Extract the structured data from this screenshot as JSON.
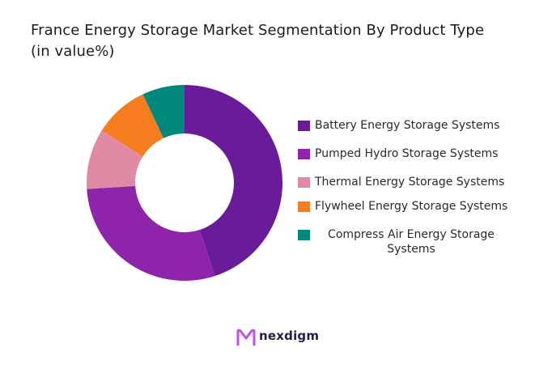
{
  "chart_data": {
    "type": "pie",
    "style": "donut",
    "title_line1": "France Energy Storage Market Segmentation By Product Type",
    "title_line2": "(in value%)",
    "categories": [
      "Battery Energy Storage Systems",
      "Pumped Hydro Storage Systems",
      "Thermal Energy Storage Systems",
      "Flywheel Energy Storage Systems",
      "Compress Air Energy Storage Systems"
    ],
    "values": [
      45,
      29,
      10,
      9,
      7
    ],
    "colors": [
      "#6a1b9a",
      "#8e24aa",
      "#e08ba3",
      "#f57c1f",
      "#00897b"
    ],
    "legend_position": "right"
  },
  "brand": {
    "name": "nexdigm",
    "color": "#2c1a4d",
    "accent": "#c44de0"
  }
}
